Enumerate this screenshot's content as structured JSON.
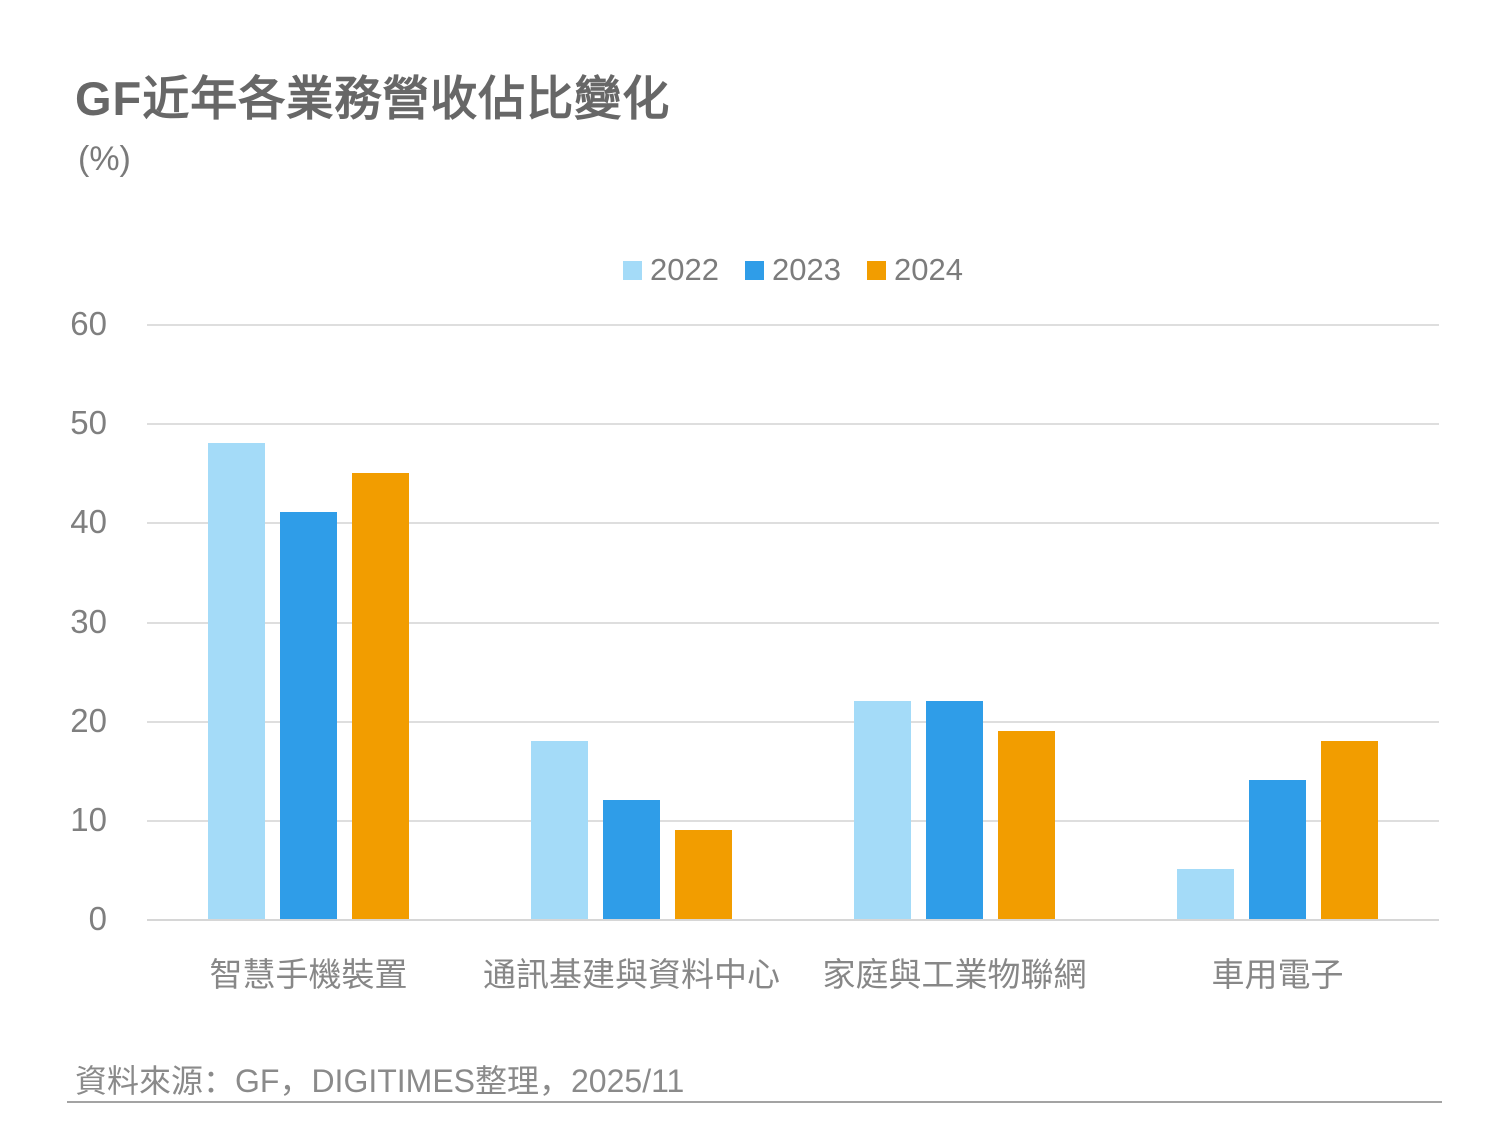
{
  "page": {
    "title": "GF近年各業務營收佔比變化",
    "unit_label": "(%)",
    "source": "資料來源：GF，DIGITIMES整理，2025/11"
  },
  "chart_data": {
    "type": "bar",
    "title": "GF近年各業務營收佔比變化",
    "ylabel": "(%)",
    "categories": [
      "智慧手機裝置",
      "通訊基建與資料中心",
      "家庭與工業物聯網",
      "車用電子"
    ],
    "series": [
      {
        "name": "2022",
        "color": "#a4dbf8",
        "values": [
          48,
          18,
          22,
          5
        ]
      },
      {
        "name": "2023",
        "color": "#2f9de8",
        "values": [
          41,
          12,
          22,
          14
        ]
      },
      {
        "name": "2024",
        "color": "#f29d00",
        "values": [
          45,
          9,
          19,
          18
        ]
      }
    ],
    "ylim": [
      0,
      60
    ],
    "yticks": [
      0,
      10,
      20,
      30,
      40,
      50,
      60
    ],
    "grid": true,
    "legend_position": "top-center",
    "gridline_color": "#dedede",
    "text_color": "#7f7f7f"
  }
}
